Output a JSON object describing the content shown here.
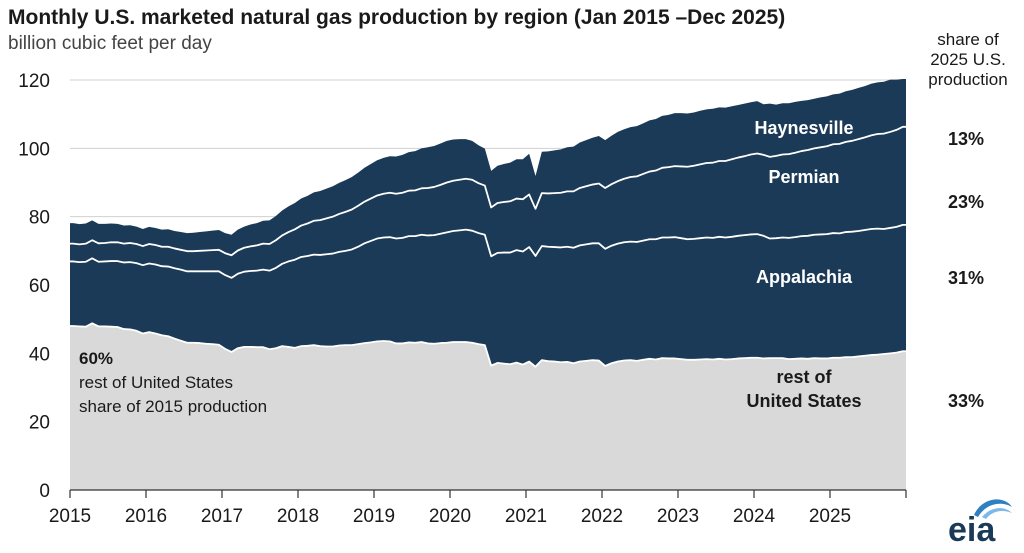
{
  "title": "Monthly U.S. marketed natural gas production by region (Jan 2015 –Dec 2025)",
  "subtitle": "billion cubic feet per day",
  "share_header": [
    "share of",
    "2025 U.S.",
    "production"
  ],
  "logo_text": "eia",
  "annotation_2015": {
    "percent": "60%",
    "line1": "rest of United States",
    "line2": "share of 2015 production"
  },
  "chart_data": {
    "type": "area",
    "stacked": true,
    "y_ticks": [
      "0",
      "20",
      "40",
      "60",
      "80",
      "100",
      "120"
    ],
    "ylim": [
      0,
      120
    ],
    "x_ticks": [
      "2015",
      "2016",
      "2017",
      "2018",
      "2019",
      "2020",
      "2021",
      "2022",
      "2023",
      "2024",
      "2025"
    ],
    "x_range": [
      "Jan 2015",
      "Dec 2025"
    ],
    "colors": {
      "rest": "#d9d9d9",
      "regions": "#1b3a57",
      "separator": "#ffffff"
    },
    "series": [
      {
        "name": "rest of United States",
        "label_lines": [
          "rest of",
          "United States"
        ],
        "share_2025": "33%",
        "values": [
          48.0,
          47.9,
          47.8,
          48.8,
          47.9,
          47.9,
          47.8,
          47.7,
          47.1,
          47.0,
          46.6,
          45.8,
          46.2,
          45.8,
          45.3,
          45.0,
          44.3,
          43.7,
          43.1,
          43.1,
          43.0,
          42.8,
          42.7,
          42.5,
          41.3,
          40.4,
          41.5,
          41.9,
          41.9,
          41.8,
          41.8,
          41.2,
          41.5,
          42.1,
          41.9,
          41.6,
          42.1,
          42.2,
          42.4,
          42.1,
          42.0,
          42.0,
          42.3,
          42.4,
          42.4,
          42.7,
          43.0,
          43.2,
          43.5,
          43.6,
          43.5,
          42.9,
          42.9,
          43.2,
          43.1,
          43.3,
          42.9,
          42.8,
          43.0,
          43.1,
          43.3,
          43.3,
          43.3,
          43.1,
          42.7,
          42.4,
          36.4,
          37.2,
          37.0,
          36.8,
          37.3,
          36.7,
          37.6,
          36.1,
          38.0,
          37.7,
          37.6,
          37.4,
          37.5,
          37.1,
          37.6,
          37.8,
          38.0,
          37.9,
          36.3,
          37.1,
          37.6,
          37.9,
          38.0,
          37.8,
          38.1,
          38.4,
          38.2,
          38.6,
          38.5,
          38.5,
          38.3,
          38.1,
          38.1,
          38.2,
          38.3,
          38.2,
          38.4,
          38.2,
          38.3,
          38.5,
          38.6,
          38.7,
          38.7,
          38.5,
          38.6,
          38.6,
          38.6,
          38.3,
          38.4,
          38.5,
          38.4,
          38.6,
          38.5,
          38.5,
          38.7,
          38.7,
          38.9,
          38.9,
          39.1,
          39.3,
          39.5,
          39.6,
          39.8,
          40.0,
          40.2,
          40.6
        ]
      },
      {
        "name": "Appalachia",
        "share_2025": "31%",
        "values": [
          18.9,
          18.8,
          19.0,
          19.0,
          18.9,
          19.0,
          19.2,
          19.3,
          19.5,
          19.7,
          19.8,
          20.0,
          20.1,
          20.2,
          20.2,
          20.4,
          20.6,
          20.8,
          20.9,
          20.9,
          21.0,
          21.2,
          21.3,
          21.5,
          21.6,
          21.7,
          21.8,
          22.0,
          22.2,
          22.4,
          22.7,
          23.0,
          23.5,
          24.1,
          25.0,
          25.8,
          26.1,
          26.3,
          26.5,
          26.7,
          27.0,
          27.2,
          27.4,
          27.6,
          28.0,
          28.5,
          29.2,
          29.7,
          30.1,
          30.3,
          30.5,
          30.7,
          30.9,
          31.1,
          31.2,
          31.4,
          31.6,
          31.8,
          32.0,
          32.3,
          32.5,
          32.7,
          32.9,
          32.8,
          32.5,
          32.3,
          32.0,
          32.2,
          32.5,
          32.7,
          32.9,
          33.1,
          33.5,
          32.4,
          33.4,
          33.5,
          33.5,
          33.6,
          33.7,
          33.8,
          34.0,
          34.1,
          34.2,
          34.3,
          34.3,
          34.4,
          34.5,
          34.6,
          34.7,
          34.8,
          34.9,
          35.0,
          35.2,
          35.3,
          35.4,
          35.5,
          35.4,
          35.3,
          35.4,
          35.5,
          35.6,
          35.6,
          35.7,
          35.7,
          35.8,
          35.9,
          36.0,
          36.1,
          36.2,
          35.9,
          35.0,
          35.1,
          35.3,
          35.5,
          35.6,
          35.8,
          36.0,
          36.1,
          36.3,
          36.4,
          36.5,
          36.4,
          36.6,
          36.7,
          36.7,
          36.8,
          36.9,
          36.9,
          36.6,
          36.7,
          36.8,
          37.0
        ]
      },
      {
        "name": "Permian",
        "share_2025": "23%",
        "values": [
          5.2,
          5.2,
          5.3,
          5.3,
          5.4,
          5.4,
          5.5,
          5.5,
          5.5,
          5.6,
          5.6,
          5.6,
          5.7,
          5.7,
          5.7,
          5.8,
          5.8,
          5.8,
          5.9,
          5.9,
          6.0,
          6.1,
          6.2,
          6.3,
          6.4,
          6.6,
          6.8,
          7.0,
          7.2,
          7.4,
          7.6,
          7.8,
          8.1,
          8.3,
          8.6,
          8.9,
          9.2,
          9.5,
          9.9,
          10.2,
          10.5,
          10.8,
          11.1,
          11.4,
          11.7,
          12.0,
          12.2,
          12.4,
          12.6,
          12.8,
          13.0,
          13.1,
          13.2,
          13.3,
          13.4,
          13.6,
          13.9,
          14.1,
          14.3,
          14.6,
          14.7,
          14.8,
          14.9,
          14.9,
          14.6,
          14.4,
          14.3,
          14.6,
          14.8,
          15.0,
          15.1,
          15.3,
          15.4,
          13.8,
          15.5,
          15.6,
          15.8,
          16.0,
          16.2,
          16.5,
          16.8,
          17.0,
          17.2,
          17.5,
          17.8,
          18.0,
          18.3,
          18.6,
          18.9,
          19.2,
          19.5,
          19.8,
          20.1,
          20.4,
          20.6,
          20.8,
          21.0,
          21.2,
          21.4,
          21.6,
          21.8,
          22.0,
          22.2,
          22.4,
          22.7,
          22.9,
          23.1,
          23.4,
          23.6,
          23.7,
          23.9,
          24.1,
          24.3,
          24.5,
          24.7,
          24.9,
          25.1,
          25.3,
          25.5,
          25.7,
          26.0,
          26.2,
          26.4,
          26.6,
          26.9,
          27.1,
          27.4,
          27.7,
          27.9,
          28.1,
          28.4,
          28.7
        ]
      },
      {
        "name": "Haynesville",
        "share_2025": "13%",
        "values": [
          6.0,
          5.9,
          5.9,
          5.8,
          5.7,
          5.6,
          5.5,
          5.4,
          5.3,
          5.2,
          5.1,
          5.0,
          5.0,
          5.0,
          5.0,
          5.1,
          5.1,
          5.2,
          5.3,
          5.4,
          5.5,
          5.6,
          5.7,
          5.8,
          5.9,
          6.0,
          6.1,
          6.2,
          6.4,
          6.5,
          6.7,
          6.9,
          7.1,
          7.3,
          7.5,
          7.7,
          7.9,
          8.1,
          8.3,
          8.5,
          8.7,
          8.9,
          9.1,
          9.3,
          9.5,
          9.7,
          9.9,
          10.1,
          10.3,
          10.5,
          10.7,
          10.9,
          11.1,
          11.3,
          11.5,
          11.7,
          11.9,
          12.0,
          12.1,
          12.2,
          12.1,
          11.9,
          11.6,
          11.4,
          11.1,
          10.8,
          10.7,
          10.9,
          11.1,
          11.3,
          11.5,
          11.7,
          11.9,
          9.6,
          12.1,
          12.3,
          12.5,
          12.7,
          12.9,
          13.1,
          13.3,
          13.5,
          13.7,
          13.9,
          14.0,
          14.2,
          14.4,
          14.5,
          14.6,
          14.7,
          14.8,
          15.0,
          15.1,
          15.2,
          15.3,
          15.5,
          15.6,
          15.6,
          15.6,
          15.7,
          15.7,
          15.8,
          15.7,
          15.6,
          15.5,
          15.4,
          15.4,
          15.3,
          15.3,
          14.8,
          15.6,
          15.0,
          15.0,
          14.9,
          14.9,
          14.7,
          14.6,
          14.5,
          14.6,
          14.6,
          14.6,
          14.7,
          14.8,
          14.9,
          15.0,
          15.0,
          15.1,
          15.1,
          15.2,
          15.3,
          14.7,
          14.0
        ]
      }
    ]
  }
}
